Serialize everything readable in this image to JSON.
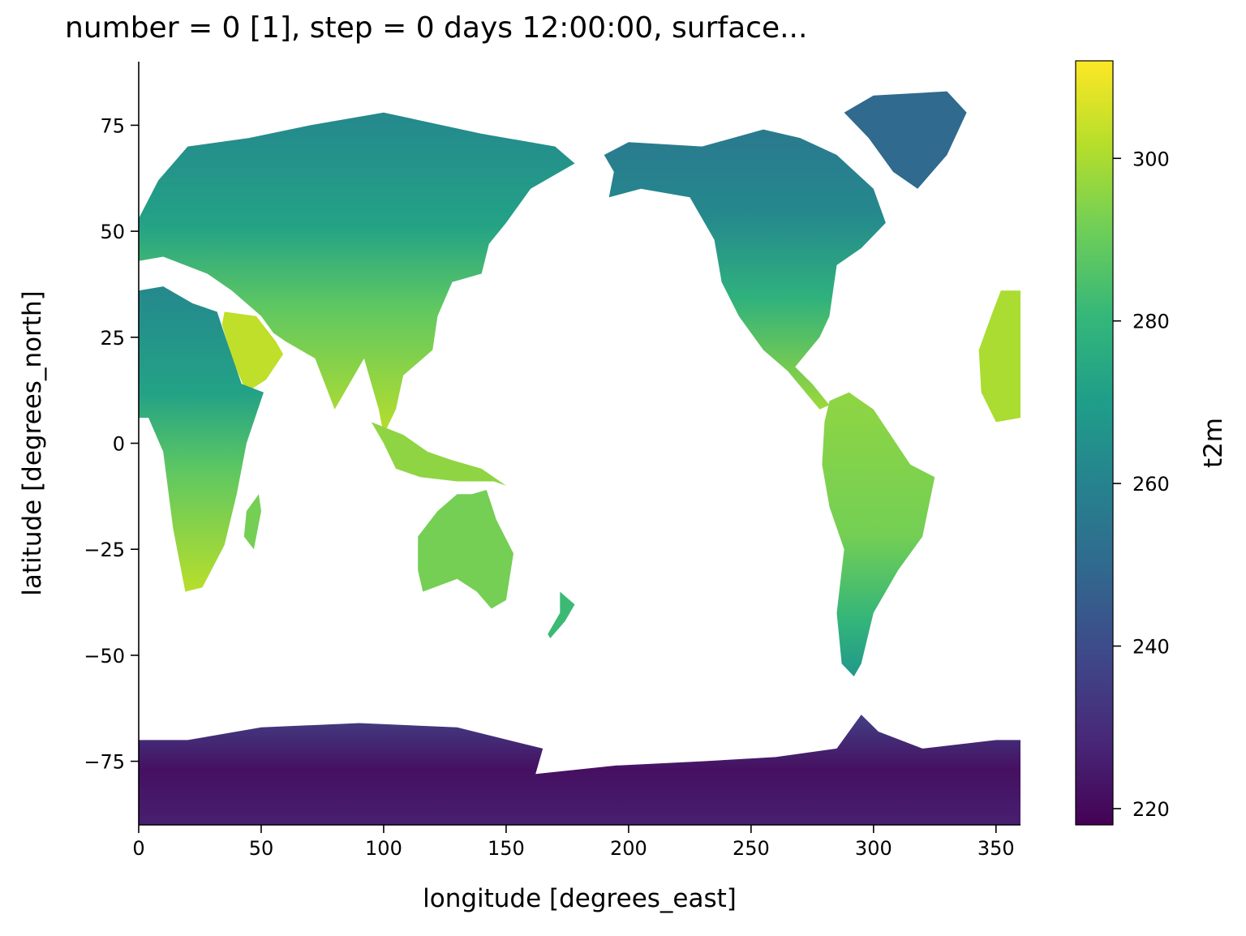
{
  "chart_data": {
    "type": "heatmap",
    "title": "number = 0 [1], step = 0 days 12:00:00, surface...",
    "xlabel": "longitude [degrees_east]",
    "ylabel": "latitude [degrees_north]",
    "xlim": [
      0,
      360
    ],
    "ylim": [
      -90,
      90
    ],
    "x_ticks": [
      0,
      50,
      100,
      150,
      200,
      250,
      300,
      350
    ],
    "x_tick_labels": [
      "0",
      "50",
      "100",
      "150",
      "200",
      "250",
      "300",
      "350"
    ],
    "y_ticks": [
      75,
      50,
      25,
      0,
      -25,
      -50,
      -75
    ],
    "y_tick_labels": [
      "75",
      "50",
      "25",
      "0",
      "−25",
      "−50",
      "−75"
    ],
    "colorbar": {
      "label": "t2m",
      "colormap": "viridis",
      "range": [
        218,
        312
      ],
      "ticks": [
        300,
        280,
        260,
        240,
        220
      ],
      "tick_labels": [
        "300",
        "280",
        "260",
        "240",
        "220"
      ]
    },
    "grid": false,
    "ocean": "no data (white)"
  }
}
